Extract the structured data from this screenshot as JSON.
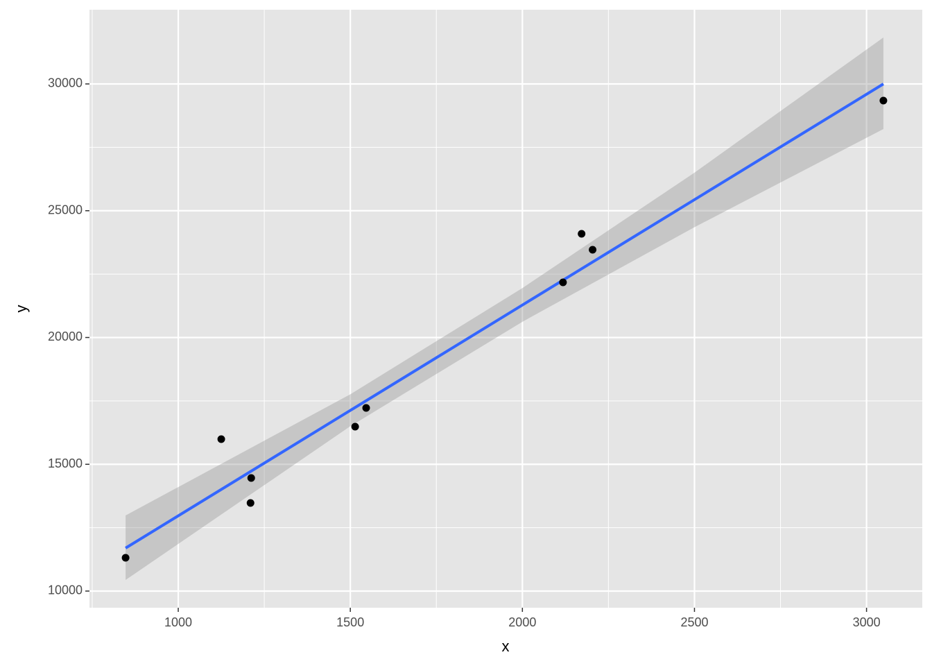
{
  "chart_data": {
    "type": "scatter",
    "x_label": "x",
    "y_label": "y",
    "x": [
      847,
      1125,
      1212,
      1210,
      1514,
      1546,
      2118,
      2172,
      2204,
      3049
    ],
    "y": [
      11313,
      15992,
      14460,
      13475,
      16484,
      17223,
      22175,
      24090,
      23461,
      29343
    ],
    "color": "#000000",
    "fit": {
      "x": [
        847,
        1500,
        2000,
        2500,
        3049
      ],
      "y": [
        11696,
        17124,
        21280,
        25436,
        30000
      ],
      "lower": [
        10438,
        16500,
        20620,
        24350,
        28222
      ],
      "upper": [
        12982,
        17760,
        21950,
        26500,
        31833
      ],
      "color": "#3366ff",
      "band_color": "#999999"
    },
    "xlim": [
      742,
      3162
    ],
    "ylim": [
      9343,
      32927
    ],
    "xticks": [
      1000,
      1500,
      2000,
      2500,
      3000
    ],
    "yticks": [
      10000,
      15000,
      20000,
      25000,
      30000
    ],
    "xminor": [
      750,
      1250,
      1750,
      2250,
      2750
    ],
    "yminor": [
      12500,
      17500,
      22500,
      27500
    ],
    "grid": true,
    "panel_color": "#e5e5e5"
  }
}
